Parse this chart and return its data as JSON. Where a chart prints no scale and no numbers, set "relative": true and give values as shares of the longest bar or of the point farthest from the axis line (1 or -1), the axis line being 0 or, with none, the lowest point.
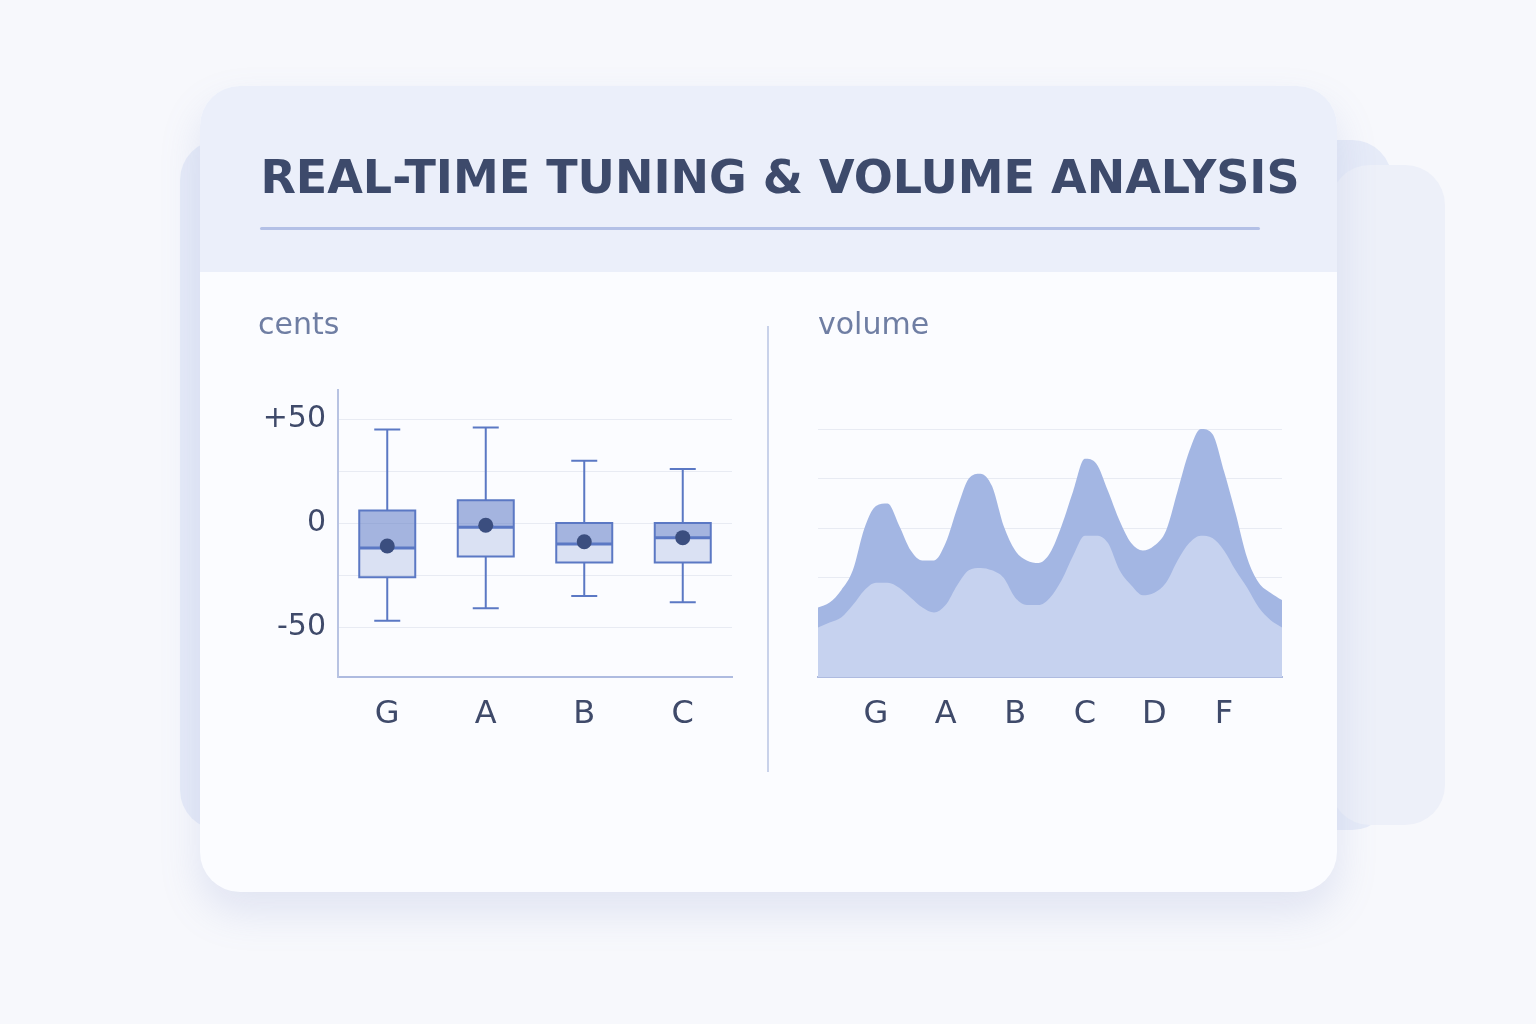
{
  "chart_data": [
    {
      "type": "box",
      "title": "REAL-TIME TUNING & VOLUME ANALYSIS",
      "ylabel": "cents",
      "categories": [
        "G",
        "A",
        "B",
        "C"
      ],
      "color": "#5b78c4",
      "grid": "y",
      "ylim": [
        -74,
        64
      ],
      "yticks": [
        -50,
        {
          "value": -25,
          "label": null
        },
        0,
        {
          "value": 25,
          "label": null
        },
        {
          "value": 50,
          "label": "+50"
        }
      ],
      "boxes": [
        {
          "low": -47,
          "q1": -26,
          "median": -12,
          "q3": 6,
          "high": 45,
          "mean": -11
        },
        {
          "low": -41,
          "q1": -16,
          "median": -2,
          "q3": 11,
          "high": 46,
          "mean": -1
        },
        {
          "low": -35,
          "q1": -19,
          "median": -10,
          "q3": 0,
          "high": 30,
          "mean": -9
        },
        {
          "low": -38,
          "q1": -19,
          "median": -7,
          "q3": 0,
          "high": 26,
          "mean": -7
        }
      ]
    },
    {
      "type": "area",
      "ylabel": "volume",
      "relative": true,
      "grid": "y",
      "marker": "none",
      "categories": [
        null,
        null,
        null,
        null,
        null,
        "G",
        null,
        null,
        null,
        null,
        null,
        "A",
        null,
        null,
        null,
        null,
        null,
        "B",
        null,
        null,
        null,
        null,
        null,
        "C",
        null,
        null,
        null,
        null,
        null,
        "D",
        null,
        null,
        null,
        null,
        null,
        "F",
        null,
        null,
        null,
        null,
        null
      ],
      "series": [
        {
          "color": "#a3b6e3",
          "values": [
            0.28,
            0.3,
            0.35,
            0.43,
            0.6,
            0.69,
            0.7,
            0.61,
            0.51,
            0.47,
            0.47,
            0.54,
            0.68,
            0.8,
            0.82,
            0.77,
            0.61,
            0.51,
            0.47,
            0.46,
            0.5,
            0.61,
            0.75,
            0.88,
            0.86,
            0.75,
            0.63,
            0.54,
            0.51,
            0.53,
            0.59,
            0.75,
            0.91,
            1,
            0.98,
            0.83,
            0.66,
            0.48,
            0.38,
            0.34,
            0.31
          ]
        },
        {
          "color": "#c6d2ef",
          "values": [
            0.2,
            0.22,
            0.24,
            0.29,
            0.35,
            0.38,
            0.38,
            0.36,
            0.32,
            0.28,
            0.26,
            0.29,
            0.37,
            0.43,
            0.44,
            0.43,
            0.4,
            0.32,
            0.29,
            0.29,
            0.32,
            0.39,
            0.49,
            0.57,
            0.57,
            0.54,
            0.43,
            0.37,
            0.33,
            0.34,
            0.38,
            0.47,
            0.54,
            0.57,
            0.56,
            0.51,
            0.43,
            0.36,
            0.28,
            0.23,
            0.2
          ]
        }
      ]
    }
  ]
}
